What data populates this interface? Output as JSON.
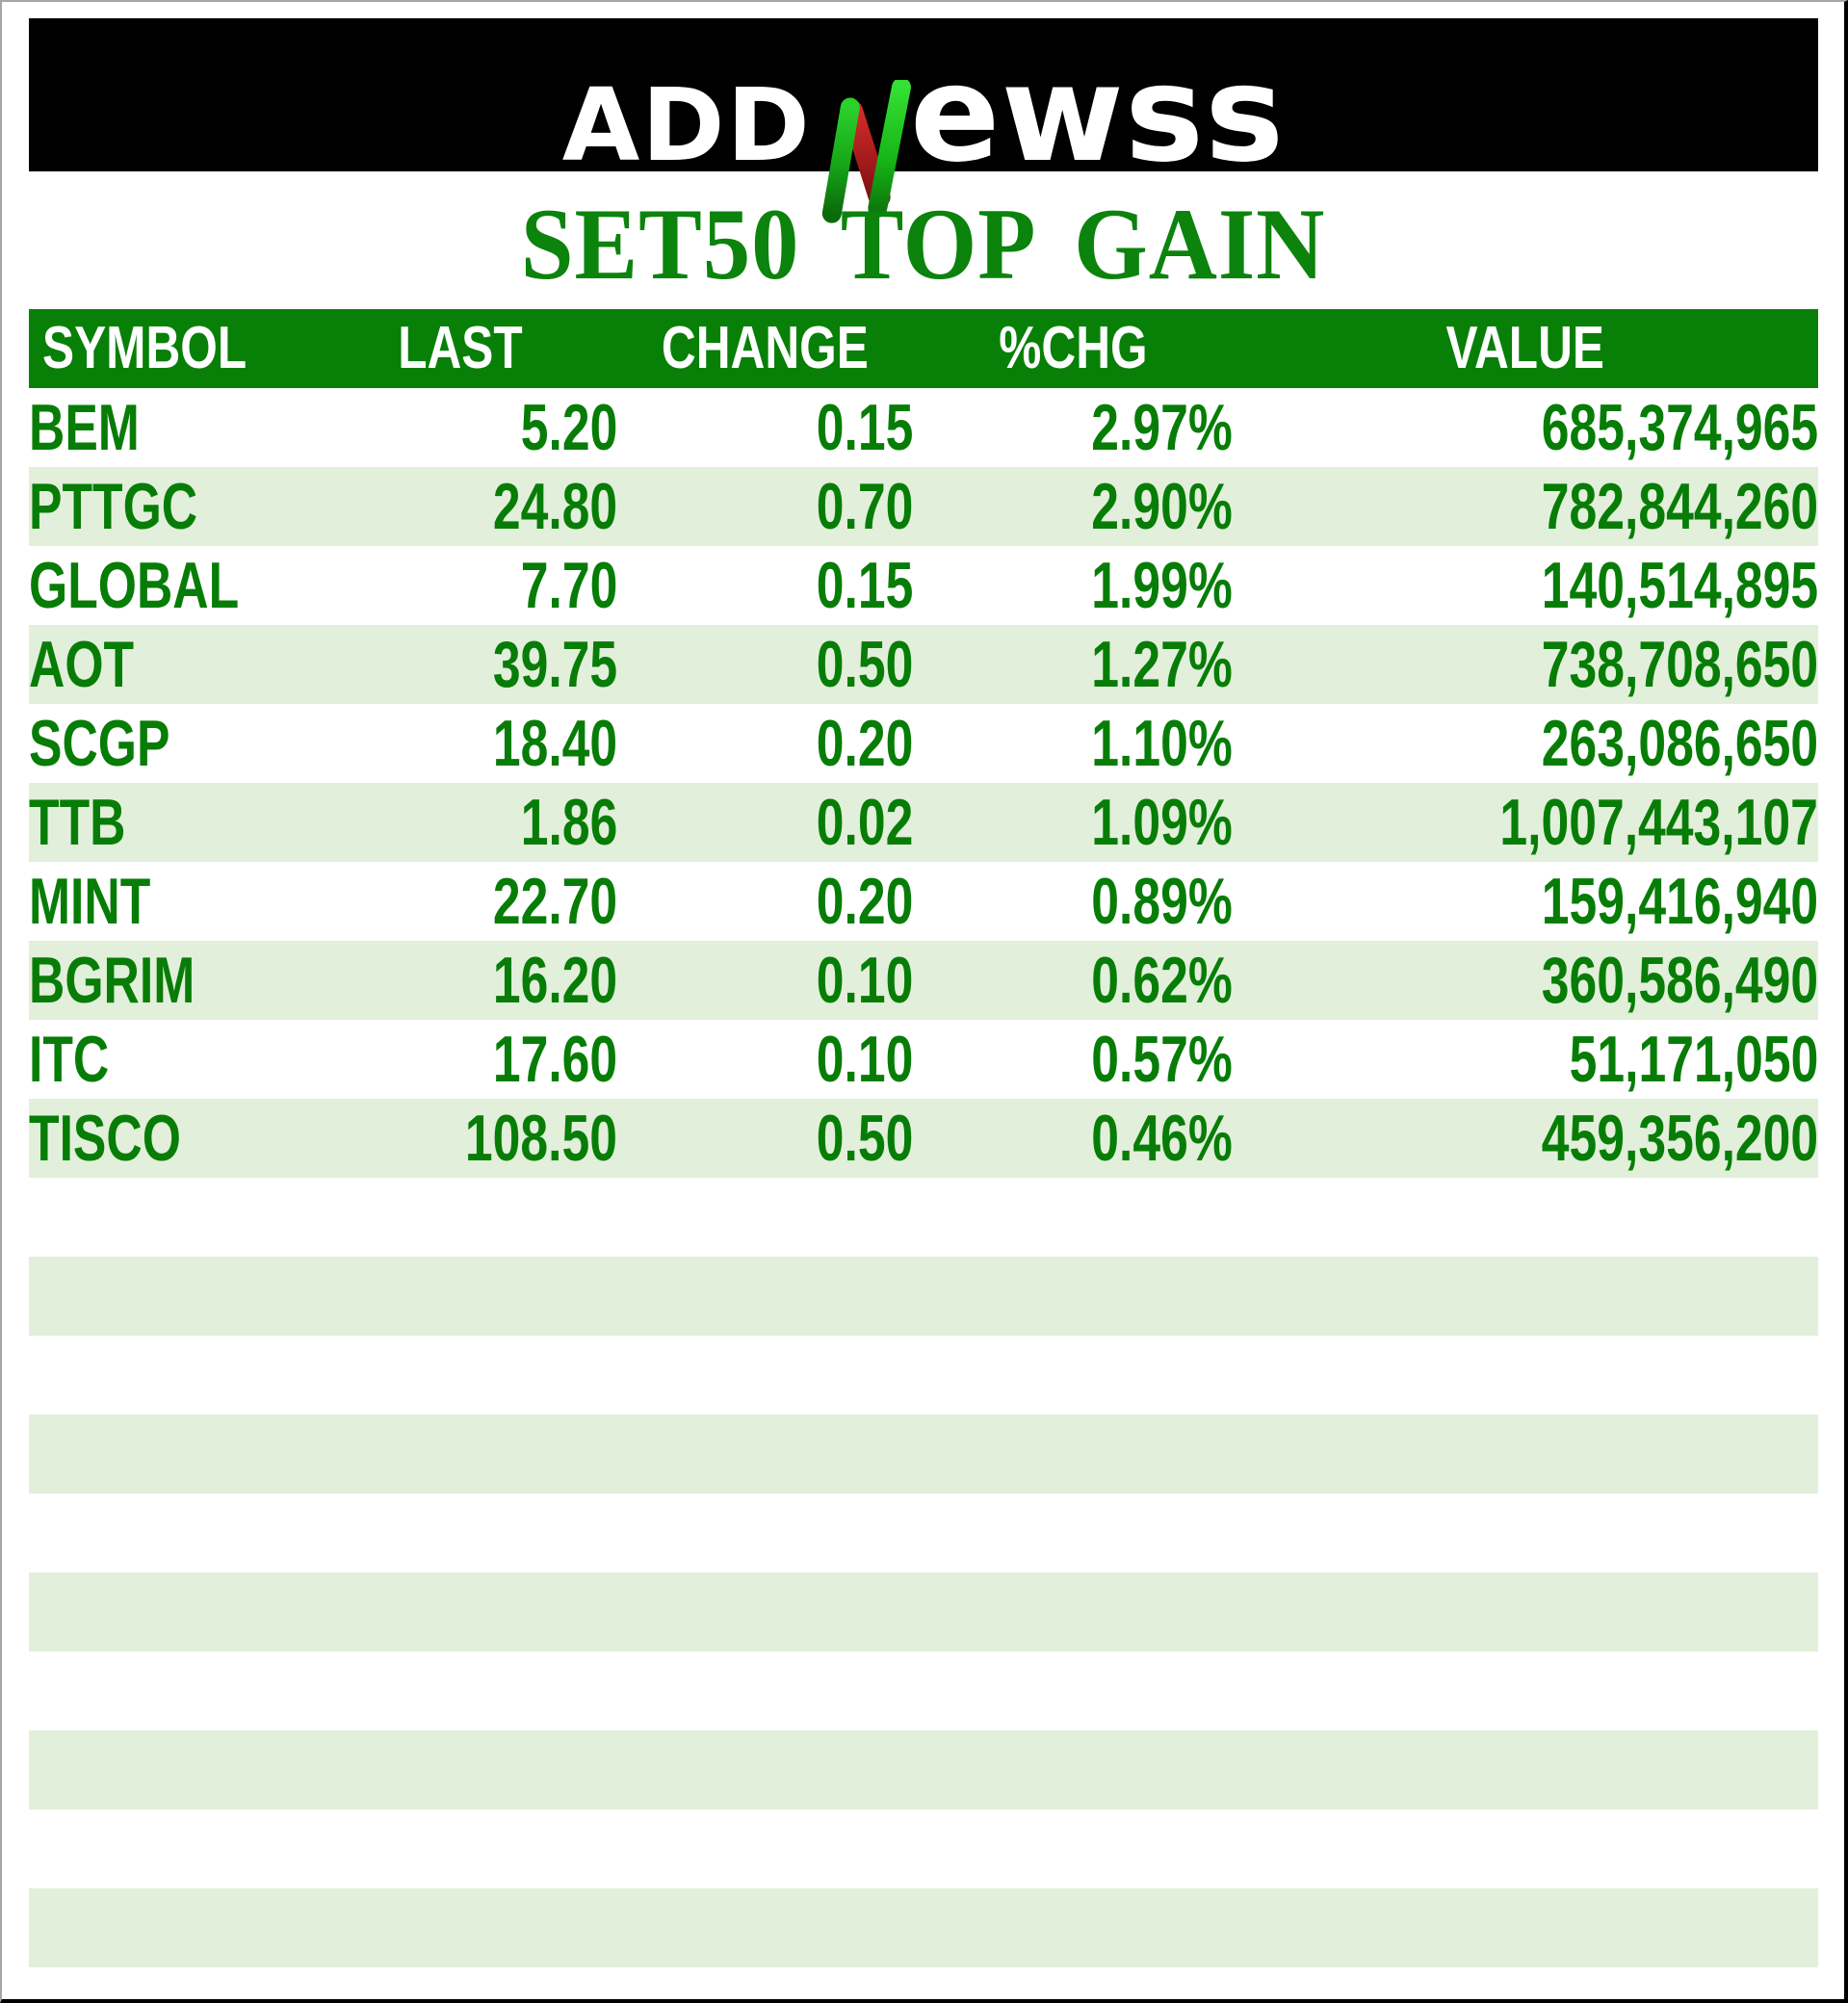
{
  "banner": {
    "logo": {
      "prefix": "ADD",
      "suffix": "ewss",
      "n_icon": "stylized-n-logo-mark"
    }
  },
  "chart_data": {
    "type": "table",
    "title": "SET50 TOP GAIN",
    "columns": [
      "SYMBOL",
      "LAST",
      "CHANGE",
      "%CHG",
      "VALUE"
    ],
    "rows": [
      [
        "BEM",
        "5.20",
        "0.15",
        "2.97%",
        "685,374,965"
      ],
      [
        "PTTGC",
        "24.80",
        "0.70",
        "2.90%",
        "782,844,260"
      ],
      [
        "GLOBAL",
        "7.70",
        "0.15",
        "1.99%",
        "140,514,895"
      ],
      [
        "AOT",
        "39.75",
        "0.50",
        "1.27%",
        "738,708,650"
      ],
      [
        "SCGP",
        "18.40",
        "0.20",
        "1.10%",
        "263,086,650"
      ],
      [
        "TTB",
        "1.86",
        "0.02",
        "1.09%",
        "1,007,443,107"
      ],
      [
        "MINT",
        "22.70",
        "0.20",
        "0.89%",
        "159,416,940"
      ],
      [
        "BGRIM",
        "16.20",
        "0.10",
        "0.62%",
        "360,586,490"
      ],
      [
        "ITC",
        "17.60",
        "0.10",
        "0.57%",
        "51,171,050"
      ],
      [
        "TISCO",
        "108.50",
        "0.50",
        "0.46%",
        "459,356,200"
      ]
    ],
    "empty_rows": 10,
    "layout_hints": {
      "row_striping": "alternating white / light green",
      "header_alignment": "SYMBOL left, others centered",
      "value_alignment": "SYMBOL left, numeric columns right"
    }
  },
  "colors": {
    "banner_background": "#000000",
    "header_green": "#088008",
    "header_text": "#ffffff",
    "data_text_green": "#077d07",
    "row_stripe_green": "#e2efda",
    "title_green": "#0c830c",
    "logo_white": "#ffffff",
    "logo_green_bright": "#22cc22",
    "logo_green_dark": "#0b6b0b",
    "logo_red": "#c32222",
    "logo_red_dark": "#7e1111",
    "frame_gray": "#a6a6a6",
    "frame_black": "#000000"
  }
}
